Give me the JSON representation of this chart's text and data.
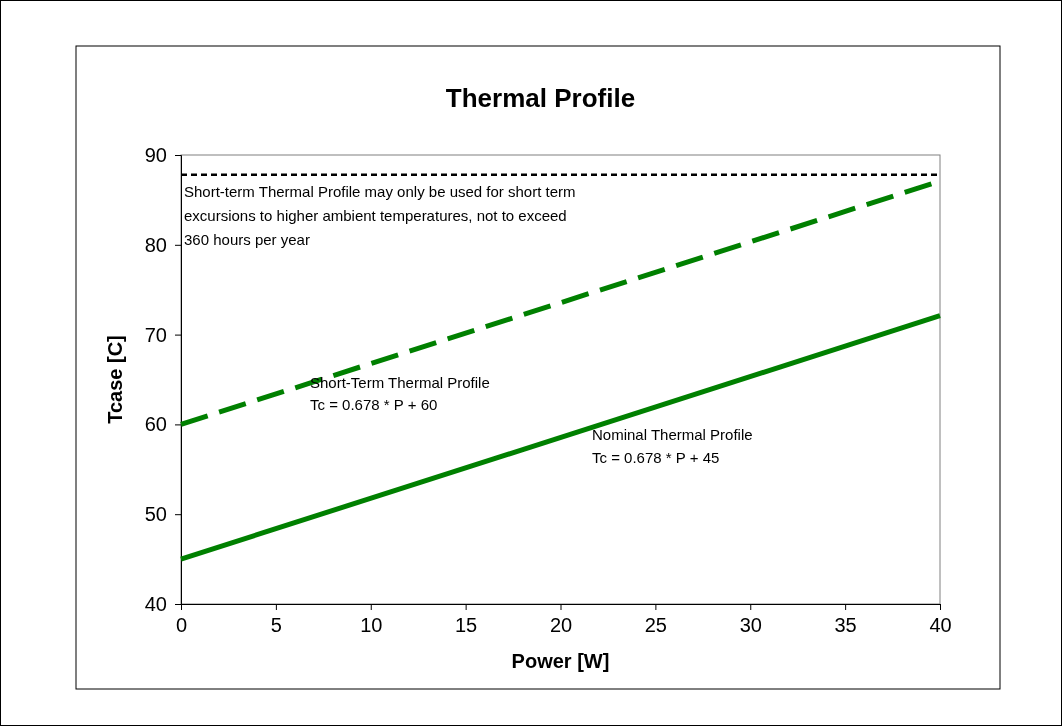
{
  "chart_data": {
    "type": "line",
    "title": "Thermal Profile",
    "xlabel": "Power [W]",
    "ylabel": "Tcase [C]",
    "x": [
      0,
      40
    ],
    "xlim": [
      0,
      40
    ],
    "xticks": [
      0,
      5,
      10,
      15,
      20,
      25,
      30,
      35,
      40
    ],
    "ylim": [
      40,
      90
    ],
    "yticks": [
      40,
      50,
      60,
      70,
      80,
      90
    ],
    "grid": false,
    "marker": "none",
    "series": [
      {
        "color": "#008000",
        "line_style": "dashed",
        "values": [
          60,
          87.1
        ]
      },
      {
        "color": "#008000",
        "line_style": "solid",
        "values": [
          45,
          72.1
        ]
      }
    ],
    "ref_lines": [
      {
        "axis": "y",
        "value": 87.8,
        "color": "#000000",
        "line_style": "dashed",
        "label": "Short-term Thermal Profile may only be used for short term excursions to higher ambient temperatures, not to exceed 360 hours per year"
      }
    ],
    "annotations": [
      "Short-Term Thermal Profile",
      "Tc = 0.678 * P + 60",
      "Nominal Thermal Profile",
      "Tc = 0.678 * P + 45"
    ]
  }
}
